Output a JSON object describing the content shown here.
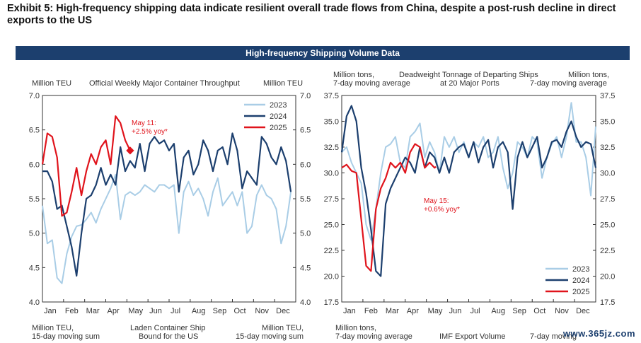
{
  "exhibit_title": "Exhibit 5: High-frequency shipping data indicate resilient overall trade flows from China, despite a post-rush decline in direct exports to the US",
  "banner": "High-frequency Shipping Volume Data",
  "watermark": "www.365jz.com",
  "colors": {
    "2023": "#a9cde6",
    "2024": "#1c3f6e",
    "2025": "#e0141c"
  },
  "left_panel": {
    "header_left": "Million TEU",
    "header_center": "Official Weekly Major Container Throughput",
    "header_right": "Million TEU",
    "footer_left_1": "Million TEU,",
    "footer_left_2": "15-day moving sum",
    "footer_center_1": "Laden Container Ship",
    "footer_center_2": "Bound for the US",
    "footer_right_1": "Million TEU,",
    "footer_right_2": "15-day moving sum",
    "annotation_1": "May 11:",
    "annotation_2": "+2.5% yoy*"
  },
  "right_panel": {
    "header_left_1": "Million tons,",
    "header_left_2": "7-day moving average",
    "header_center_1": "Deadweight Tonnage of Departing Ships",
    "header_center_2": "at 20 Major Ports",
    "header_right_1": "Million tons,",
    "header_right_2": "7-day moving average",
    "footer_left_1": "Million tons,",
    "footer_left_2": "7-day moving average",
    "footer_center": "IMF Export Volume",
    "footer_right": "7-day moving",
    "annotation_1": "May 15:",
    "annotation_2": "+0.6% yoy*"
  },
  "chart_data": [
    {
      "type": "line",
      "title": "Official Weekly Major Container Throughput",
      "ylabel": "Million TEU",
      "ylim": [
        4.0,
        7.0
      ],
      "yticks": [
        "4.0",
        "4.5",
        "5.0",
        "5.5",
        "6.0",
        "6.5",
        "7.0"
      ],
      "months": [
        "Jan",
        "Feb",
        "Mar",
        "Apr",
        "May",
        "Jun",
        "Jul",
        "Aug",
        "Sep",
        "Oct",
        "Nov",
        "Dec"
      ],
      "x_unit": "week of year",
      "xlim": [
        1,
        53
      ],
      "legend_position": "top-right",
      "series": [
        {
          "name": "2023",
          "x": [
            1,
            2,
            3,
            4,
            5,
            6,
            7,
            8,
            9,
            10,
            11,
            12,
            13,
            14,
            15,
            16,
            17,
            18,
            19,
            20,
            21,
            22,
            23,
            24,
            25,
            26,
            27,
            28,
            29,
            30,
            31,
            32,
            33,
            34,
            35,
            36,
            37,
            38,
            39,
            40,
            41,
            42,
            43,
            44,
            45,
            46,
            47,
            48,
            49,
            50,
            51,
            52
          ],
          "values": [
            5.4,
            4.85,
            4.9,
            4.35,
            4.27,
            4.7,
            4.95,
            5.1,
            5.12,
            5.2,
            5.3,
            5.15,
            5.35,
            5.5,
            5.65,
            5.85,
            5.2,
            5.55,
            5.6,
            5.55,
            5.6,
            5.7,
            5.65,
            5.6,
            5.7,
            5.7,
            5.65,
            5.7,
            5.0,
            5.6,
            5.75,
            5.55,
            5.65,
            5.5,
            5.25,
            5.6,
            5.8,
            5.4,
            5.5,
            5.6,
            5.4,
            5.6,
            5.0,
            5.1,
            5.55,
            5.7,
            5.55,
            5.5,
            5.35,
            4.85,
            5.1,
            5.6
          ]
        },
        {
          "name": "2024",
          "x": [
            1,
            2,
            3,
            4,
            5,
            6,
            7,
            8,
            9,
            10,
            11,
            12,
            13,
            14,
            15,
            16,
            17,
            18,
            19,
            20,
            21,
            22,
            23,
            24,
            25,
            26,
            27,
            28,
            29,
            30,
            31,
            32,
            33,
            34,
            35,
            36,
            37,
            38,
            39,
            40,
            41,
            42,
            43,
            44,
            45,
            46,
            47,
            48,
            49,
            50,
            51,
            52
          ],
          "values": [
            5.9,
            5.9,
            5.75,
            5.35,
            5.4,
            5.1,
            4.8,
            4.38,
            5.0,
            5.5,
            5.55,
            5.7,
            5.95,
            5.7,
            5.85,
            5.7,
            6.25,
            5.9,
            6.05,
            5.95,
            6.3,
            5.9,
            6.3,
            6.4,
            6.3,
            6.35,
            6.2,
            6.3,
            5.6,
            6.1,
            6.2,
            5.85,
            6.0,
            6.35,
            6.2,
            5.9,
            6.2,
            6.25,
            6.0,
            6.45,
            6.2,
            5.65,
            5.9,
            5.8,
            5.7,
            6.4,
            6.3,
            6.1,
            6.0,
            6.25,
            6.05,
            5.6
          ]
        },
        {
          "name": "2025",
          "x": [
            1,
            2,
            3,
            4,
            5,
            6,
            7,
            8,
            9,
            10,
            11,
            12,
            13,
            14,
            15,
            16,
            17,
            18,
            19
          ],
          "values": [
            6.0,
            6.45,
            6.4,
            6.1,
            5.25,
            5.3,
            5.6,
            5.95,
            5.55,
            5.9,
            6.15,
            6.0,
            6.25,
            6.35,
            6.0,
            6.7,
            6.6,
            6.35,
            6.2
          ]
        }
      ],
      "annotation": {
        "text": "May 11: +2.5% yoy*",
        "x": 19,
        "y": 6.2
      }
    },
    {
      "type": "line",
      "title": "Deadweight Tonnage of Departing Ships at 20 Major Ports",
      "ylabel": "Million tons, 7-day moving average",
      "ylim": [
        17.5,
        37.5
      ],
      "yticks": [
        "17.5",
        "20.0",
        "22.5",
        "25.0",
        "27.5",
        "30.0",
        "32.5",
        "35.0",
        "37.5"
      ],
      "months": [
        "Jan",
        "Feb",
        "Mar",
        "Apr",
        "May",
        "Jun",
        "Jul",
        "Aug",
        "Sep",
        "Oct",
        "Nov",
        "Dec"
      ],
      "x_unit": "day of year",
      "xlim": [
        1,
        365
      ],
      "legend_position": "bottom-right",
      "series": [
        {
          "name": "2023",
          "x": [
            1,
            8,
            15,
            22,
            29,
            36,
            43,
            50,
            57,
            64,
            71,
            78,
            85,
            92,
            99,
            106,
            113,
            120,
            127,
            134,
            141,
            148,
            155,
            162,
            169,
            176,
            183,
            190,
            197,
            204,
            211,
            218,
            225,
            232,
            239,
            246,
            253,
            260,
            267,
            274,
            281,
            288,
            295,
            302,
            309,
            316,
            323,
            330,
            337,
            344,
            351,
            358,
            365
          ],
          "values": [
            32.0,
            32.5,
            31.0,
            30.0,
            29.0,
            25.0,
            23.5,
            26.5,
            30.0,
            32.5,
            32.8,
            33.5,
            31.0,
            30.5,
            33.5,
            34.0,
            34.8,
            31.5,
            33.0,
            32.0,
            30.0,
            33.5,
            32.5,
            33.5,
            32.0,
            33.0,
            31.5,
            33.0,
            32.5,
            33.5,
            31.5,
            32.0,
            33.5,
            30.5,
            28.5,
            30.0,
            33.0,
            32.5,
            31.5,
            33.5,
            33.0,
            29.5,
            31.5,
            32.8,
            33.5,
            31.5,
            33.5,
            36.8,
            33.0,
            33.0,
            31.5,
            27.8,
            34.5
          ]
        },
        {
          "name": "2024",
          "x": [
            1,
            8,
            15,
            22,
            29,
            36,
            43,
            50,
            57,
            64,
            71,
            78,
            85,
            92,
            99,
            106,
            113,
            120,
            127,
            134,
            141,
            148,
            155,
            162,
            169,
            176,
            183,
            190,
            197,
            204,
            211,
            218,
            225,
            232,
            239,
            246,
            253,
            260,
            267,
            274,
            281,
            288,
            295,
            302,
            309,
            316,
            323,
            330,
            337,
            344,
            351,
            358,
            365
          ],
          "values": [
            32.0,
            35.5,
            36.5,
            35.0,
            30.5,
            28.0,
            24.5,
            20.5,
            20.0,
            27.0,
            28.5,
            29.5,
            30.5,
            31.5,
            31.0,
            30.0,
            32.5,
            30.5,
            32.0,
            31.5,
            30.0,
            31.5,
            30.0,
            32.0,
            32.5,
            32.8,
            31.5,
            33.0,
            31.0,
            32.5,
            33.2,
            30.5,
            32.5,
            33.0,
            32.0,
            26.5,
            31.5,
            33.0,
            31.5,
            32.5,
            33.5,
            30.5,
            31.5,
            33.0,
            33.2,
            32.5,
            34.0,
            35.0,
            33.5,
            32.5,
            33.0,
            32.8,
            30.5
          ]
        },
        {
          "name": "2025",
          "x": [
            1,
            8,
            15,
            22,
            29,
            36,
            43,
            50,
            57,
            64,
            71,
            78,
            85,
            92,
            99,
            106,
            113,
            120,
            127,
            134,
            136
          ],
          "values": [
            30.5,
            30.8,
            30.2,
            30.0,
            25.5,
            21.0,
            20.5,
            26.5,
            28.5,
            29.5,
            31.0,
            30.5,
            31.0,
            30.0,
            32.0,
            32.8,
            32.5,
            30.5,
            31.0,
            30.5,
            30.6
          ]
        }
      ],
      "annotation": {
        "text": "May 15: +0.6% yoy*",
        "x": 135,
        "y": 30.6
      }
    }
  ]
}
